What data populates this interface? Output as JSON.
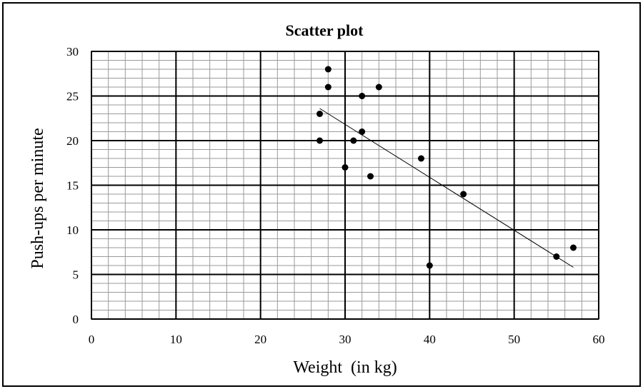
{
  "chart_data": {
    "type": "scatter",
    "title": "Scatter plot",
    "xlabel": "Weight  (in kg)",
    "ylabel": "Push-ups per minute",
    "xlim": [
      0,
      60
    ],
    "ylim": [
      0,
      30
    ],
    "x_major_ticks": [
      "0",
      "10",
      "20",
      "30",
      "40",
      "50",
      "60"
    ],
    "y_major_ticks": [
      "0",
      "5",
      "10",
      "15",
      "20",
      "25",
      "30"
    ],
    "x_minor_step": 2,
    "y_minor_step": 1,
    "grid": true,
    "legend": "none",
    "points": [
      {
        "x": 27,
        "y": 23
      },
      {
        "x": 27,
        "y": 20
      },
      {
        "x": 28,
        "y": 28
      },
      {
        "x": 28,
        "y": 26
      },
      {
        "x": 30,
        "y": 17
      },
      {
        "x": 31,
        "y": 20
      },
      {
        "x": 32,
        "y": 25
      },
      {
        "x": 32,
        "y": 21
      },
      {
        "x": 33,
        "y": 16
      },
      {
        "x": 34,
        "y": 26
      },
      {
        "x": 39,
        "y": 18
      },
      {
        "x": 40,
        "y": 6
      },
      {
        "x": 44,
        "y": 14
      },
      {
        "x": 55,
        "y": 7
      },
      {
        "x": 57,
        "y": 8
      }
    ],
    "trendline": {
      "x": [
        27,
        57
      ],
      "y": [
        23.6,
        5.8
      ]
    },
    "colors": {
      "points": "#000000",
      "major_grid": "#000000",
      "minor_grid": "#9a9a9a",
      "frame": "#000000"
    }
  }
}
